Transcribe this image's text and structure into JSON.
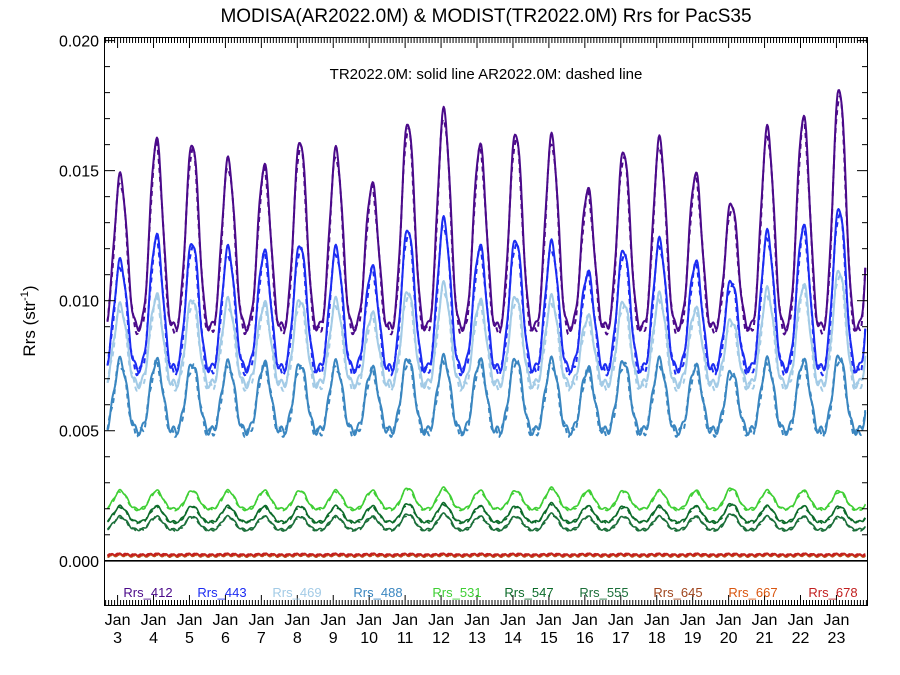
{
  "chart_data": {
    "type": "line",
    "title": "MODISA(AR2022.0M) & MODIST(TR2022.0M)  Rrs for PacS35",
    "ylabel": "Rrs (str",
    "ylabel_sup": "-1",
    "ylabel_close": ")",
    "annotation": "TR2022.0M: solid line   AR2022.0M: dashed line",
    "ylim": [
      -0.0017,
      0.0201
    ],
    "xlim": [
      2.65,
      23.85
    ],
    "yticks": [
      0.0,
      0.005,
      0.01,
      0.015,
      0.02
    ],
    "ytick_labels": [
      "0.000",
      "0.005",
      "0.010",
      "0.015",
      "0.020"
    ],
    "xticks": [
      3,
      4,
      5,
      6,
      7,
      8,
      9,
      10,
      11,
      12,
      13,
      14,
      15,
      16,
      17,
      18,
      19,
      20,
      21,
      22,
      23
    ],
    "xtick_month": "Jan",
    "xtick_years": [
      "3",
      "4",
      "5",
      "6",
      "7",
      "8",
      "9",
      "10",
      "11",
      "12",
      "13",
      "14",
      "15",
      "16",
      "17",
      "18",
      "19",
      "20",
      "21",
      "22",
      "23"
    ],
    "zero_line": true,
    "series": [
      {
        "name": "Rrs_412",
        "color": "#4b0a8a",
        "baseline": 0.009,
        "amplitude": 0.0072,
        "peaks": [
          0.0148,
          0.0162,
          0.0161,
          0.0154,
          0.0152,
          0.0162,
          0.0158,
          0.0145,
          0.0169,
          0.0173,
          0.016,
          0.0165,
          0.0163,
          0.0143,
          0.0158,
          0.0162,
          0.0149,
          0.0138,
          0.0166,
          0.0171,
          0.0182
        ]
      },
      {
        "name": "Rrs_443",
        "color": "#1c2cf2",
        "baseline": 0.0074,
        "amplitude": 0.0044,
        "peaks": [
          0.0115,
          0.0125,
          0.0123,
          0.012,
          0.0119,
          0.0122,
          0.012,
          0.0113,
          0.0128,
          0.0131,
          0.0121,
          0.0124,
          0.0122,
          0.0111,
          0.012,
          0.0123,
          0.0115,
          0.0108,
          0.0126,
          0.0129,
          0.0136
        ]
      },
      {
        "name": "Rrs_469",
        "color": "#a3cbe6",
        "baseline": 0.0068,
        "amplitude": 0.0032,
        "peaks": [
          0.0098,
          0.0102,
          0.0101,
          0.01,
          0.0099,
          0.0101,
          0.01,
          0.0095,
          0.0104,
          0.0106,
          0.01,
          0.0102,
          0.0101,
          0.0094,
          0.01,
          0.0102,
          0.0097,
          0.0093,
          0.0104,
          0.0106,
          0.0112
        ]
      },
      {
        "name": "Rrs_488",
        "color": "#3a86c0",
        "baseline": 0.005,
        "amplitude": 0.0027,
        "peaks": [
          0.0077,
          0.0077,
          0.0076,
          0.0076,
          0.0076,
          0.0076,
          0.0076,
          0.0074,
          0.0078,
          0.0078,
          0.0077,
          0.0078,
          0.0077,
          0.0074,
          0.0077,
          0.0077,
          0.0075,
          0.0073,
          0.0077,
          0.0077,
          0.0079
        ]
      },
      {
        "name": "Rrs_531",
        "color": "#3fcf34",
        "baseline": 0.002,
        "amplitude": 0.0007,
        "peaks": [
          0.0027,
          0.0027,
          0.0027,
          0.0027,
          0.0027,
          0.0027,
          0.0027,
          0.0027,
          0.0028,
          0.0028,
          0.0027,
          0.0027,
          0.0028,
          0.0027,
          0.0027,
          0.0027,
          0.0027,
          0.0028,
          0.0027,
          0.0027,
          0.0027
        ]
      },
      {
        "name": "Rrs_547",
        "color": "#0c6b2a",
        "baseline": 0.0015,
        "amplitude": 0.0006,
        "peaks": [
          0.0021,
          0.0021,
          0.0021,
          0.0021,
          0.0021,
          0.0021,
          0.0021,
          0.0021,
          0.0022,
          0.0022,
          0.0021,
          0.0021,
          0.0022,
          0.0021,
          0.0021,
          0.0021,
          0.0021,
          0.0022,
          0.0021,
          0.0021,
          0.0021
        ]
      },
      {
        "name": "Rrs_555",
        "color": "#1b6f3a",
        "baseline": 0.0012,
        "amplitude": 0.0005,
        "peaks": [
          0.0017,
          0.0017,
          0.0017,
          0.0017,
          0.0017,
          0.0017,
          0.0017,
          0.0017,
          0.0018,
          0.0018,
          0.0017,
          0.0017,
          0.0018,
          0.0017,
          0.0017,
          0.0017,
          0.0017,
          0.0018,
          0.0017,
          0.0017,
          0.0017
        ]
      },
      {
        "name": "Rrs_645",
        "color": "#a0461e",
        "baseline": 0.00018,
        "amplitude": 3e-05,
        "peaks": []
      },
      {
        "name": "Rrs_667",
        "color": "#d9560f",
        "baseline": 0.0002,
        "amplitude": 3e-05,
        "peaks": []
      },
      {
        "name": "Rrs_678",
        "color": "#c21f1f",
        "baseline": 0.00022,
        "amplitude": 3e-05,
        "peaks": []
      }
    ]
  }
}
